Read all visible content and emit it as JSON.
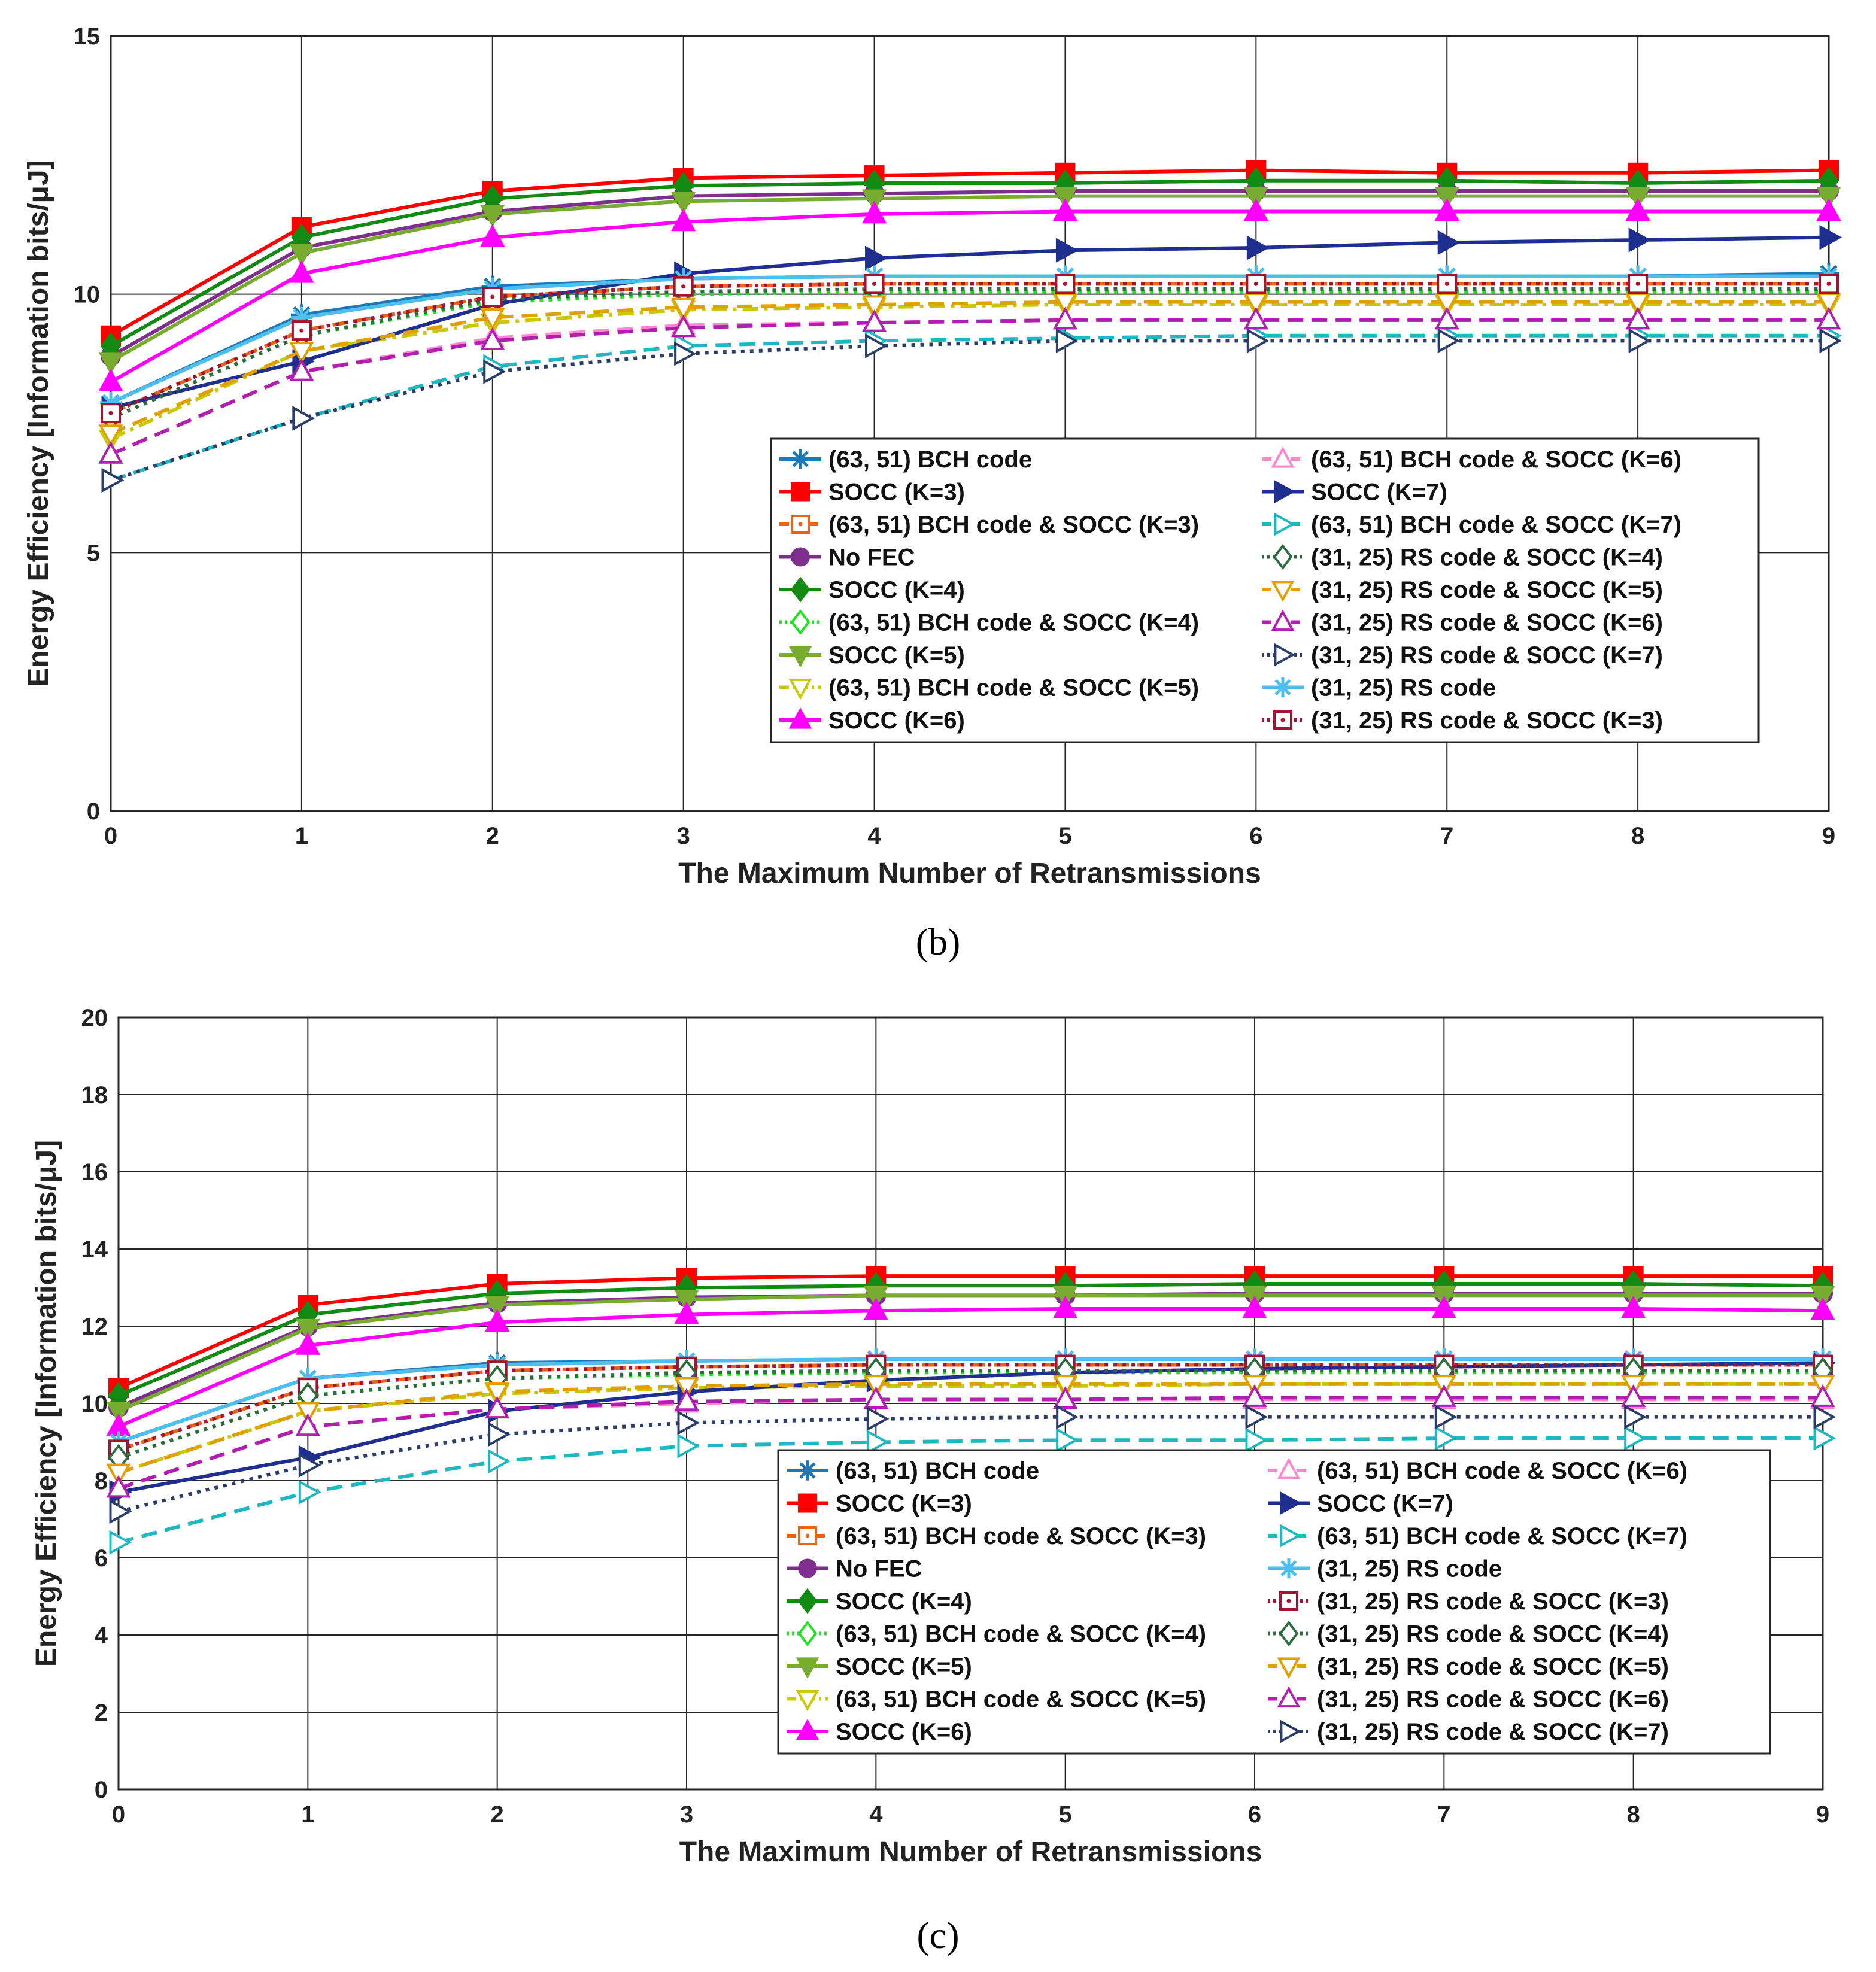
{
  "chart_data": [
    {
      "type": "line",
      "panel": "(b)",
      "xlabel": "The Maximum Number of Retransmissions",
      "ylabel": "Energy Efficiency [Information bits/μJ]",
      "xlim": [
        0,
        9
      ],
      "ylim": [
        0,
        15
      ],
      "xticks": [
        0,
        1,
        2,
        3,
        4,
        5,
        6,
        7,
        8,
        9
      ],
      "yticks": [
        0,
        5,
        10,
        15
      ],
      "grid": true,
      "legend_position": "lower-right",
      "legend_columns": [
        [
          "(63, 51) BCH code",
          "SOCC (K=3)",
          "(63, 51) BCH code & SOCC (K=3)",
          "No FEC",
          "SOCC (K=4)",
          "(63, 51) BCH code & SOCC (K=4)",
          "SOCC (K=5)",
          "(63, 51) BCH code & SOCC (K=5)",
          "SOCC (K=6)"
        ],
        [
          "(63, 51) BCH code & SOCC (K=6)",
          "SOCC (K=7)",
          "(63, 51) BCH code & SOCC (K=7)",
          "(31, 25) RS code & SOCC (K=4)",
          "(31, 25) RS code & SOCC (K=5)",
          "(31, 25) RS code & SOCC (K=6)",
          "(31, 25) RS code & SOCC (K=7)",
          "(31, 25) RS code",
          "(31, 25) RS code & SOCC (K=3)"
        ]
      ],
      "x": [
        0,
        1,
        2,
        3,
        4,
        5,
        6,
        7,
        8,
        9
      ],
      "series": [
        {
          "name": "(63, 51) BCH code",
          "values": [
            7.9,
            9.6,
            10.15,
            10.3,
            10.35,
            10.35,
            10.35,
            10.35,
            10.35,
            10.4
          ]
        },
        {
          "name": "SOCC (K=3)",
          "values": [
            9.2,
            11.3,
            12.0,
            12.25,
            12.3,
            12.35,
            12.4,
            12.35,
            12.35,
            12.4
          ]
        },
        {
          "name": "(63, 51) BCH code & SOCC (K=3)",
          "values": [
            7.7,
            9.3,
            9.95,
            10.15,
            10.2,
            10.2,
            10.2,
            10.2,
            10.2,
            10.2
          ]
        },
        {
          "name": "No FEC",
          "values": [
            8.8,
            10.9,
            11.6,
            11.9,
            11.95,
            12.0,
            12.0,
            12.0,
            12.0,
            12.0
          ]
        },
        {
          "name": "SOCC (K=4)",
          "values": [
            9.0,
            11.1,
            11.85,
            12.1,
            12.15,
            12.15,
            12.2,
            12.2,
            12.15,
            12.2
          ]
        },
        {
          "name": "(63, 51) BCH code & SOCC (K=4)",
          "values": [
            7.6,
            9.2,
            9.85,
            10.0,
            10.05,
            10.05,
            10.05,
            10.05,
            10.05,
            10.05
          ]
        },
        {
          "name": "SOCC (K=5)",
          "values": [
            8.7,
            10.8,
            11.55,
            11.8,
            11.85,
            11.9,
            11.9,
            11.9,
            11.9,
            11.9
          ]
        },
        {
          "name": "(63, 51) BCH code & SOCC (K=5)",
          "values": [
            7.2,
            8.9,
            9.45,
            9.7,
            9.75,
            9.8,
            9.8,
            9.8,
            9.8,
            9.8
          ]
        },
        {
          "name": "SOCC (K=6)",
          "values": [
            8.3,
            10.4,
            11.1,
            11.4,
            11.55,
            11.6,
            11.6,
            11.6,
            11.6,
            11.6
          ]
        },
        {
          "name": "(63, 51) BCH code & SOCC (K=6)",
          "values": [
            6.9,
            8.5,
            9.15,
            9.4,
            9.45,
            9.5,
            9.5,
            9.5,
            9.5,
            9.5
          ]
        },
        {
          "name": "SOCC (K=7)",
          "values": [
            7.8,
            8.7,
            9.8,
            10.4,
            10.7,
            10.85,
            10.9,
            11.0,
            11.05,
            11.1
          ]
        },
        {
          "name": "(63, 51) BCH code & SOCC (K=7)",
          "values": [
            6.4,
            7.6,
            8.6,
            9.0,
            9.1,
            9.15,
            9.2,
            9.2,
            9.2,
            9.2
          ]
        },
        {
          "name": "(31, 25) RS code & SOCC (K=4)",
          "values": [
            7.6,
            9.2,
            9.9,
            10.05,
            10.1,
            10.1,
            10.1,
            10.1,
            10.1,
            10.1
          ]
        },
        {
          "name": "(31, 25) RS code & SOCC (K=5)",
          "values": [
            7.3,
            8.9,
            9.55,
            9.75,
            9.8,
            9.85,
            9.85,
            9.85,
            9.85,
            9.85
          ]
        },
        {
          "name": "(31, 25) RS code & SOCC (K=6)",
          "values": [
            6.9,
            8.5,
            9.1,
            9.35,
            9.45,
            9.5,
            9.5,
            9.5,
            9.5,
            9.5
          ]
        },
        {
          "name": "(31, 25) RS code & SOCC (K=7)",
          "values": [
            6.4,
            7.6,
            8.5,
            8.85,
            9.0,
            9.1,
            9.1,
            9.1,
            9.1,
            9.1
          ]
        },
        {
          "name": "(31, 25) RS code",
          "values": [
            7.9,
            9.55,
            10.1,
            10.3,
            10.35,
            10.35,
            10.35,
            10.35,
            10.35,
            10.35
          ]
        },
        {
          "name": "(31, 25) RS code & SOCC (K=3)",
          "values": [
            7.7,
            9.3,
            9.95,
            10.15,
            10.2,
            10.2,
            10.2,
            10.2,
            10.2,
            10.2
          ]
        }
      ]
    },
    {
      "type": "line",
      "panel": "(c)",
      "xlabel": "The Maximum Number of Retransmissions",
      "ylabel": "Energy Efficiency [Information bits/μJ]",
      "xlim": [
        0,
        9
      ],
      "ylim": [
        0,
        20
      ],
      "xticks": [
        0,
        1,
        2,
        3,
        4,
        5,
        6,
        7,
        8,
        9
      ],
      "yticks": [
        0,
        2,
        4,
        6,
        8,
        10,
        12,
        14,
        16,
        18,
        20
      ],
      "grid": true,
      "legend_position": "lower-right",
      "legend_columns": [
        [
          "(63, 51) BCH code",
          "SOCC (K=3)",
          "(63, 51) BCH code & SOCC (K=3)",
          "No FEC",
          "SOCC (K=4)",
          "(63, 51) BCH code & SOCC (K=4)",
          "SOCC (K=5)",
          "(63, 51) BCH code & SOCC (K=5)",
          "SOCC (K=6)"
        ],
        [
          "(63, 51) BCH code & SOCC (K=6)",
          "SOCC (K=7)",
          "(63, 51) BCH code & SOCC (K=7)",
          "(31, 25) RS code",
          "(31, 25) RS code & SOCC (K=3)",
          "(31, 25) RS code & SOCC (K=4)",
          "(31, 25) RS code & SOCC (K=5)",
          "(31, 25) RS code & SOCC (K=6)",
          "(31, 25) RS code & SOCC (K=7)"
        ]
      ],
      "x": [
        0,
        1,
        2,
        3,
        4,
        5,
        6,
        7,
        8,
        9
      ],
      "series": [
        {
          "name": "(63, 51) BCH code",
          "values": [
            9.0,
            10.65,
            11.05,
            11.1,
            11.15,
            11.15,
            11.15,
            11.15,
            11.15,
            11.15
          ]
        },
        {
          "name": "SOCC (K=3)",
          "values": [
            10.4,
            12.55,
            13.1,
            13.25,
            13.3,
            13.3,
            13.3,
            13.3,
            13.3,
            13.3
          ]
        },
        {
          "name": "(63, 51) BCH code & SOCC (K=3)",
          "values": [
            8.8,
            10.4,
            10.85,
            10.95,
            11.0,
            11.0,
            11.0,
            11.0,
            11.0,
            11.0
          ]
        },
        {
          "name": "No FEC",
          "values": [
            9.9,
            12.0,
            12.6,
            12.75,
            12.8,
            12.8,
            12.85,
            12.85,
            12.85,
            12.85
          ]
        },
        {
          "name": "SOCC (K=4)",
          "values": [
            10.2,
            12.3,
            12.85,
            13.0,
            13.05,
            13.05,
            13.1,
            13.1,
            13.1,
            13.05
          ]
        },
        {
          "name": "(63, 51) BCH code & SOCC (K=4)",
          "values": [
            8.6,
            10.2,
            10.65,
            10.75,
            10.8,
            10.8,
            10.8,
            10.8,
            10.8,
            10.8
          ]
        },
        {
          "name": "SOCC (K=5)",
          "values": [
            9.8,
            11.95,
            12.55,
            12.7,
            12.8,
            12.8,
            12.8,
            12.8,
            12.8,
            12.8
          ]
        },
        {
          "name": "(63, 51) BCH code & SOCC (K=5)",
          "values": [
            8.2,
            9.8,
            10.25,
            10.4,
            10.45,
            10.45,
            10.5,
            10.5,
            10.5,
            10.5
          ]
        },
        {
          "name": "SOCC (K=6)",
          "values": [
            9.4,
            11.5,
            12.1,
            12.3,
            12.4,
            12.45,
            12.45,
            12.45,
            12.45,
            12.4
          ]
        },
        {
          "name": "(63, 51) BCH code & SOCC (K=6)",
          "values": [
            7.8,
            9.4,
            9.85,
            10.0,
            10.1,
            10.1,
            10.1,
            10.1,
            10.1,
            10.1
          ]
        },
        {
          "name": "SOCC (K=7)",
          "values": [
            7.7,
            8.6,
            9.8,
            10.3,
            10.6,
            10.8,
            10.9,
            10.95,
            11.0,
            11.05
          ]
        },
        {
          "name": "(63, 51) BCH code & SOCC (K=7)",
          "values": [
            6.4,
            7.7,
            8.5,
            8.9,
            9.0,
            9.05,
            9.05,
            9.1,
            9.1,
            9.1
          ]
        },
        {
          "name": "(31, 25) RS code",
          "values": [
            9.0,
            10.65,
            11.0,
            11.1,
            11.15,
            11.15,
            11.15,
            11.15,
            11.15,
            11.15
          ]
        },
        {
          "name": "(31, 25) RS code & SOCC (K=3)",
          "values": [
            8.8,
            10.4,
            10.85,
            10.95,
            11.0,
            11.0,
            11.0,
            11.0,
            11.0,
            11.0
          ]
        },
        {
          "name": "(31, 25) RS code & SOCC (K=4)",
          "values": [
            8.6,
            10.2,
            10.65,
            10.8,
            10.85,
            10.85,
            10.85,
            10.85,
            10.85,
            10.85
          ]
        },
        {
          "name": "(31, 25) RS code & SOCC (K=5)",
          "values": [
            8.2,
            9.8,
            10.3,
            10.45,
            10.5,
            10.5,
            10.5,
            10.5,
            10.5,
            10.5
          ]
        },
        {
          "name": "(31, 25) RS code & SOCC (K=6)",
          "values": [
            7.8,
            9.4,
            9.85,
            10.05,
            10.1,
            10.1,
            10.15,
            10.15,
            10.15,
            10.15
          ]
        },
        {
          "name": "(31, 25) RS code & SOCC (K=7)",
          "values": [
            7.2,
            8.4,
            9.2,
            9.5,
            9.6,
            9.65,
            9.65,
            9.65,
            9.65,
            9.65
          ]
        }
      ]
    }
  ],
  "captions": {
    "b": "(b)",
    "c": "(c)"
  },
  "styles": {
    "(63, 51) BCH code": {
      "color": "#1f77b4",
      "marker": "asterisk",
      "dash": "solid",
      "fill": true
    },
    "SOCC (K=3)": {
      "color": "#ff0000",
      "marker": "square",
      "dash": "solid",
      "fill": true
    },
    "(63, 51) BCH code & SOCC (K=3)": {
      "color": "#e8641b",
      "marker": "square-dot",
      "dash": "dashed",
      "fill": false
    },
    "No FEC": {
      "color": "#7e2f8e",
      "marker": "circle",
      "dash": "solid",
      "fill": true
    },
    "SOCC (K=4)": {
      "color": "#138a13",
      "marker": "diamond",
      "dash": "solid",
      "fill": true
    },
    "(63, 51) BCH code & SOCC (K=4)": {
      "color": "#22e022",
      "marker": "diamond",
      "dash": "dotted",
      "fill": false
    },
    "SOCC (K=5)": {
      "color": "#77ac30",
      "marker": "tri-down",
      "dash": "solid",
      "fill": true
    },
    "(63, 51) BCH code & SOCC (K=5)": {
      "color": "#c8c80a",
      "marker": "tri-down",
      "dash": "dashdot",
      "fill": false
    },
    "SOCC (K=6)": {
      "color": "#ff00ff",
      "marker": "tri-up",
      "dash": "solid",
      "fill": true
    },
    "(63, 51) BCH code & SOCC (K=6)": {
      "color": "#ff88cc",
      "marker": "tri-up",
      "dash": "dashed",
      "fill": false
    },
    "SOCC (K=7)": {
      "color": "#1f2f8f",
      "marker": "tri-right",
      "dash": "solid",
      "fill": true
    },
    "(63, 51) BCH code & SOCC (K=7)": {
      "color": "#20b8c0",
      "marker": "tri-right",
      "dash": "dashed",
      "fill": false
    },
    "(31, 25) RS code": {
      "color": "#4dbeee",
      "marker": "asterisk",
      "dash": "solid",
      "fill": true
    },
    "(31, 25) RS code & SOCC (K=3)": {
      "color": "#a2142f",
      "marker": "square-dot",
      "dash": "dotted",
      "fill": false
    },
    "(31, 25) RS code & SOCC (K=4)": {
      "color": "#2e6b3e",
      "marker": "diamond",
      "dash": "dotted",
      "fill": false
    },
    "(31, 25) RS code & SOCC (K=5)": {
      "color": "#e0a000",
      "marker": "tri-down",
      "dash": "dashed",
      "fill": false
    },
    "(31, 25) RS code & SOCC (K=6)": {
      "color": "#b01fb0",
      "marker": "tri-up",
      "dash": "dashed",
      "fill": false
    },
    "(31, 25) RS code & SOCC (K=7)": {
      "color": "#2b3e6b",
      "marker": "tri-right",
      "dash": "dotted",
      "fill": false
    }
  }
}
